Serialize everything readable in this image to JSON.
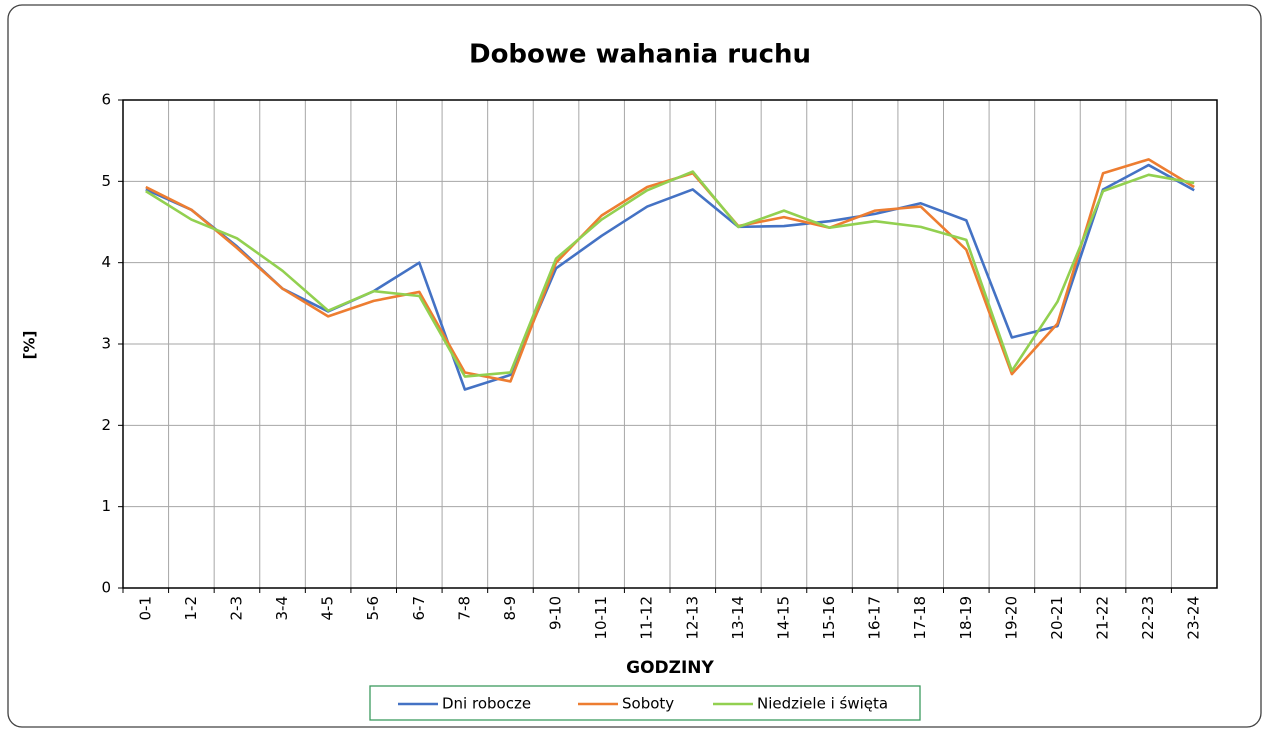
{
  "chart_data": {
    "type": "line",
    "title": "Dobowe wahania ruchu",
    "x_label": "GODZINY",
    "y_label": "[%]",
    "categories": [
      "0-1",
      "1-2",
      "2-3",
      "3-4",
      "4-5",
      "5-6",
      "6-7",
      "7-8",
      "8-9",
      "9-10",
      "10-11",
      "11-12",
      "12-13",
      "13-14",
      "14-15",
      "15-16",
      "16-17",
      "17-18",
      "18-19",
      "19-20",
      "20-21",
      "21-22",
      "22-23",
      "23-24"
    ],
    "series": [
      {
        "name": "Dni robocze",
        "color": "#4472c4",
        "values": [
          4.9,
          4.65,
          4.2,
          3.68,
          3.4,
          3.65,
          4.0,
          2.44,
          2.62,
          3.93,
          4.33,
          4.69,
          4.9,
          4.44,
          4.45,
          4.51,
          4.6,
          4.73,
          4.52,
          3.08,
          3.22,
          4.9,
          5.2,
          4.89
        ]
      },
      {
        "name": "Soboty",
        "color": "#ed7d31",
        "values": [
          4.93,
          4.65,
          4.18,
          3.68,
          3.34,
          3.53,
          3.64,
          2.65,
          2.54,
          4.0,
          4.58,
          4.93,
          5.1,
          4.45,
          4.56,
          4.43,
          4.64,
          4.69,
          4.16,
          2.63,
          3.25,
          5.1,
          5.27,
          4.93
        ]
      },
      {
        "name": "Niedziele i święta",
        "color": "#92d050",
        "values": [
          4.88,
          4.53,
          4.3,
          3.9,
          3.41,
          3.65,
          3.59,
          2.6,
          2.65,
          4.05,
          4.53,
          4.89,
          5.12,
          4.44,
          4.64,
          4.43,
          4.51,
          4.44,
          4.28,
          2.67,
          3.52,
          4.88,
          5.08,
          4.98
        ]
      }
    ],
    "ylim": [
      0,
      6
    ],
    "yticks": [
      0,
      1,
      2,
      3,
      4,
      5,
      6
    ],
    "grid": true
  }
}
